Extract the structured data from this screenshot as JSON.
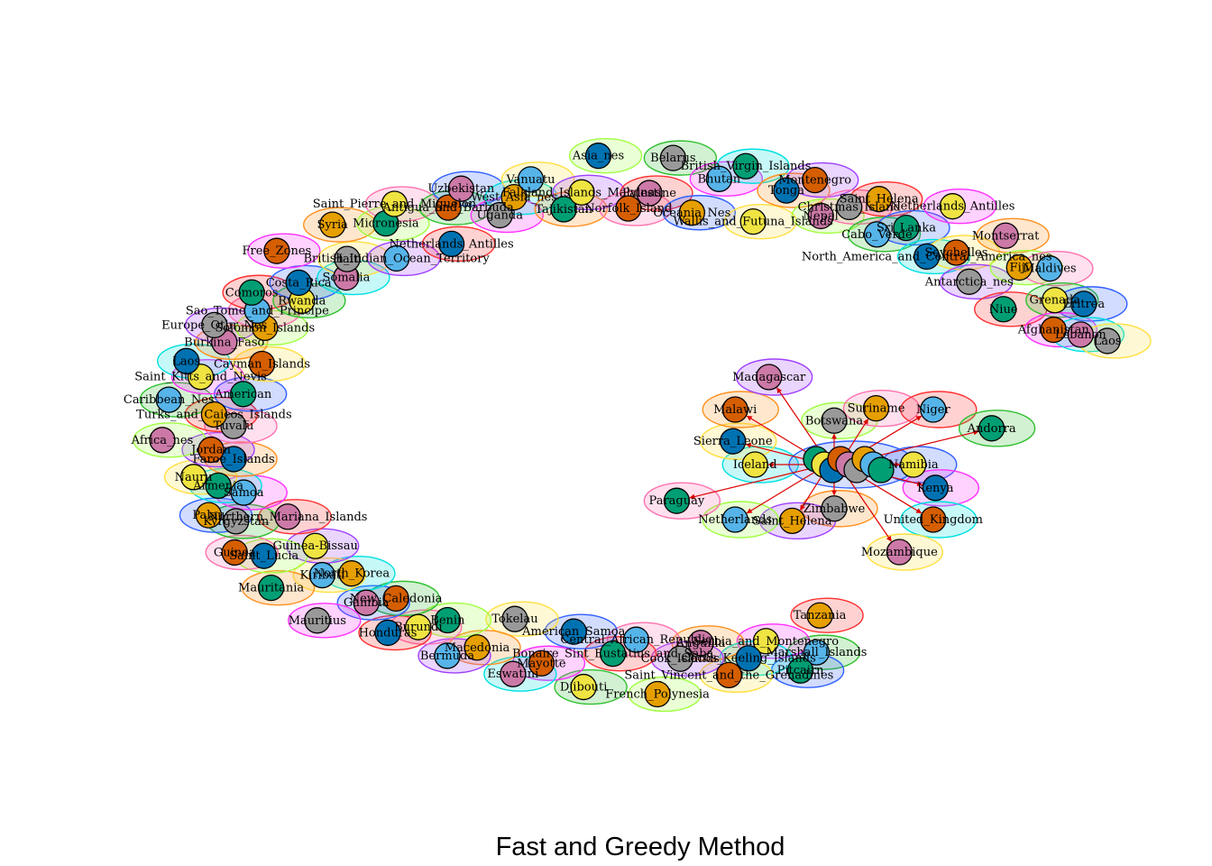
{
  "title": "Fast and Greedy Method",
  "palette": [
    "#E69F00",
    "#56B4E9",
    "#009E73",
    "#F0E442",
    "#0072B2",
    "#D55E00",
    "#CC79A7",
    "#999999"
  ],
  "hull_colors": [
    "#ff3030",
    "#30c030",
    "#3060ff",
    "#ff30ff",
    "#00e0e0",
    "#ffe040",
    "#ff9020",
    "#a040ff",
    "#a0ff40",
    "#ff70b0"
  ],
  "arc_nodes": [
    "Tanzania",
    "Marshall_Islands",
    "Pitcairn",
    "Serbia_and_Montenegro",
    "Cocos_Keeling_Islands",
    "Saint_Vincent_and_the_Grenadines",
    "Anguilla",
    "Cook_Islands",
    "French_Polynesia",
    "Central_African_Republic",
    "Bonaire_Sint_Eustatius_and_Saba",
    "Djibouti",
    "American_Samoa",
    "Mayotte",
    "Eswatini",
    "Tokelau",
    "Macedonia",
    "Bermuda",
    "Benin",
    "Burundi",
    "Honduras",
    "New_Caledonia",
    "Gambia",
    "Mauritius",
    "North_Korea",
    "Kiribati",
    "Mauritania",
    "Guinea-Bissau",
    "Saint_Lucia",
    "Guinea",
    "Northern_Mariana_Islands",
    "Kyrgyzstan",
    "Palau",
    "Samoa",
    "Armenia",
    "Nauru",
    "Faroe_Islands",
    "Jordan",
    "Africa_nes",
    "Tuvalu",
    "Turks_and_Caicos_Islands",
    "Caribbean_Nes",
    "American",
    "Saint_Kitts_and_Nevis",
    "Laos",
    "Cayman_Islands",
    "Burkina_Faso",
    "Europe_Othr_Nes",
    "Solomon_Islands",
    "Sao_Tome_and_Principe",
    "Comoros",
    "Rwanda",
    "Costa_Rica",
    "Free_Zones",
    "Somalia",
    "Haiti",
    "Syria",
    "British_Indian_Ocean_Territory",
    "Micronesia",
    "Saint_Pierre_and_Miquelon",
    "Netherlands_Antilles",
    "Antigua_and_Barbuda",
    "Uzbekistan",
    "Uganda",
    "West_Asia_nes",
    "Vanuatu",
    "Tajikistan",
    "Falkland_Islands_Malvinas",
    "Asia_nes",
    "Norfolk_Island",
    "Palestine",
    "Belarus",
    "Oceania_Nes",
    "Bhutan",
    "British_Virgin_Islands",
    "Wallis_and_Futuna_Islands",
    "Tonga",
    "Montenegro",
    "Nepal",
    "Christmas_Island",
    "Saint_Helena",
    "Cabo_Verde",
    "Sri_Lanka",
    "Netherlands_Antilles",
    "North_America_and_Central_America_nes",
    "Seychelles",
    "Montserrat",
    "Antarctica_nes",
    "Fiji",
    "Maldives",
    "Niue",
    "Grenada",
    "Eritrea",
    "Afghanistan",
    "Lebanon",
    "Laos"
  ],
  "cluster_nodes": [
    "Iceland",
    "Sierra_Leone",
    "Malawi",
    "Madagascar",
    "Botswana",
    "Suriname",
    "Niger",
    "Andorra",
    "Namibia",
    "Kenya",
    "United_Kingdom",
    "Mozambique",
    "Zimbabwe",
    "Saint_Helena",
    "Netherlands",
    "Paraguay"
  ]
}
